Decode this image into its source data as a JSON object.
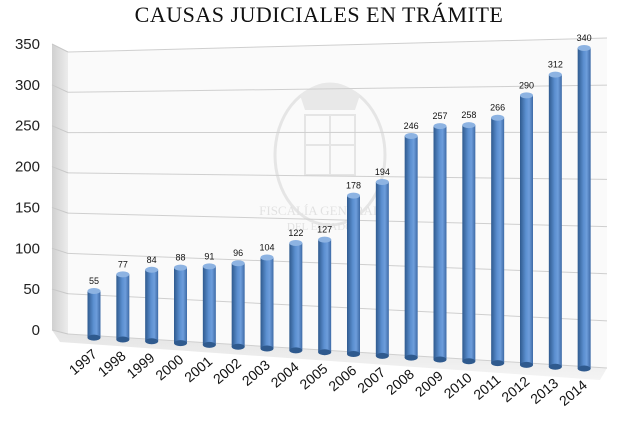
{
  "title": "CAUSAS JUDICIALES EN TRÁMITE",
  "watermark": {
    "line1": "FISCALÍA GENERAL",
    "line2": "DEL ESTADO"
  },
  "colors": {
    "bar": "#4f81bd",
    "bar_dark": "#2f5a8e",
    "bar_light": "#8db3e2",
    "grid": "#d9d9d9",
    "wall": "#e6e6e6"
  },
  "chart_data": {
    "type": "bar",
    "categories": [
      "1997",
      "1998",
      "1999",
      "2000",
      "2001",
      "2002",
      "2003",
      "2004",
      "2005",
      "2006",
      "2007",
      "2008",
      "2009",
      "2010",
      "2011",
      "2012",
      "2013",
      "2014"
    ],
    "values": [
      55,
      77,
      84,
      88,
      91,
      96,
      104,
      122,
      127,
      178,
      194,
      246,
      257,
      258,
      266,
      290,
      312,
      340
    ],
    "data_labels": [
      "55",
      "77",
      "84",
      "88",
      "91",
      "96",
      "104",
      "122",
      "127",
      "178",
      "194",
      "246",
      "257",
      "258",
      "266",
      "290",
      "312",
      "340"
    ],
    "ylim": [
      0,
      350
    ],
    "yticks": [
      "0",
      "50",
      "100",
      "150",
      "200",
      "250",
      "300",
      "350"
    ],
    "grid": true,
    "legend": "none",
    "style": "3d-perspective"
  }
}
